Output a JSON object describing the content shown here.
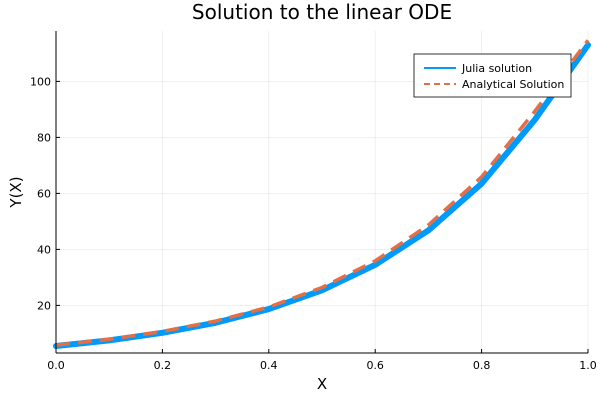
{
  "chart_data": {
    "type": "line",
    "title": "Solution to the linear ODE",
    "xlabel": "X",
    "ylabel": "Y(X)",
    "xlim": [
      0,
      1
    ],
    "ylim": [
      3,
      118
    ],
    "xticks": [
      0.0,
      0.2,
      0.4,
      0.6,
      0.8,
      1.0
    ],
    "xtick_labels": [
      "0.0",
      "0.2",
      "0.4",
      "0.6",
      "0.8",
      "1.0"
    ],
    "yticks": [
      20,
      40,
      60,
      80,
      100
    ],
    "ytick_labels": [
      "20",
      "40",
      "60",
      "80",
      "100"
    ],
    "grid": true,
    "legend_position": "top-right",
    "x": [
      0.0,
      0.1,
      0.2,
      0.3,
      0.4,
      0.5,
      0.6,
      0.7,
      0.8,
      0.9,
      1.0
    ],
    "series": [
      {
        "name": "Julia solution",
        "style": "solid",
        "color": "#009af9",
        "values": [
          5.5,
          7.5,
          10.2,
          13.8,
          18.7,
          25.4,
          34.5,
          46.8,
          63.5,
          86.3,
          113.0
        ]
      },
      {
        "name": "Analytical Solution",
        "style": "dashed",
        "color": "#e26f46",
        "values": [
          5.8,
          7.9,
          10.7,
          14.4,
          19.4,
          26.4,
          35.9,
          48.7,
          65.9,
          89.3,
          114.7
        ]
      }
    ]
  }
}
